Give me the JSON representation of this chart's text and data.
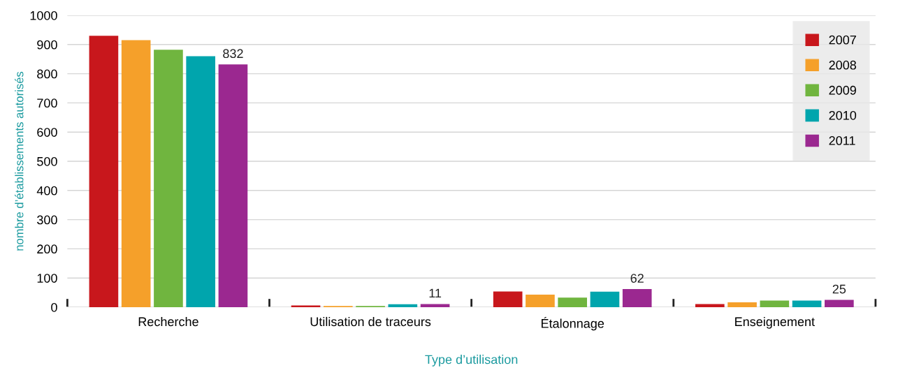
{
  "chart_data": {
    "type": "bar",
    "xlabel": "Type d’utilisation",
    "ylabel": "nombre d’établissements autorisés",
    "categories": [
      "Recherche",
      "Utilisation de traceurs",
      "Étalonnage",
      "Enseignement"
    ],
    "series": [
      {
        "name": "2007",
        "color": "#c8171c",
        "values": [
          930,
          6,
          54,
          11
        ]
      },
      {
        "name": "2008",
        "color": "#f5a02a",
        "values": [
          915,
          4,
          43,
          17
        ]
      },
      {
        "name": "2009",
        "color": "#70b53f",
        "values": [
          882,
          4,
          33,
          23
        ]
      },
      {
        "name": "2010",
        "color": "#00a5ad",
        "values": [
          860,
          10,
          53,
          23
        ]
      },
      {
        "name": "2011",
        "color": "#9b2890",
        "values": [
          832,
          11,
          62,
          25
        ],
        "value_labels": [
          "832",
          "11",
          "62",
          "25"
        ]
      }
    ],
    "ylim": [
      0,
      1000
    ],
    "yticks": [
      0,
      100,
      200,
      300,
      400,
      500,
      600,
      700,
      800,
      900,
      1000
    ],
    "grid": "y",
    "legend": "top right"
  }
}
